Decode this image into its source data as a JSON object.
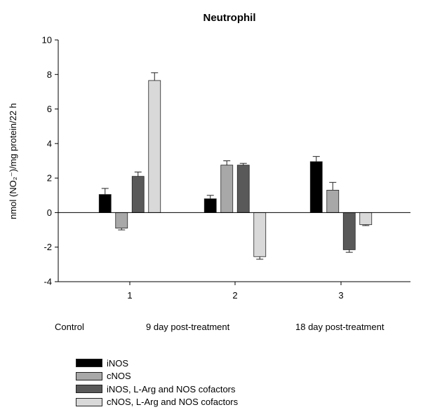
{
  "chart_data": {
    "type": "bar",
    "title": "Neutrophil",
    "ylabel": "nmol (NO₂⁻)/mg protein/22 h",
    "xlabel": "",
    "ylim": [
      -4,
      10
    ],
    "yticks": [
      -4,
      -2,
      0,
      2,
      4,
      6,
      8,
      10
    ],
    "categories": [
      "1",
      "2",
      "3"
    ],
    "group_labels": [
      "Control",
      "9 day post-treatment",
      "18 day post-treatment"
    ],
    "series": [
      {
        "name": "iNOS",
        "color": "#000000",
        "values": [
          1.05,
          0.8,
          2.95
        ],
        "errors": [
          0.35,
          0.2,
          0.3
        ]
      },
      {
        "name": "cNOS",
        "color": "#a8a8a8",
        "values": [
          -0.9,
          2.75,
          1.3
        ],
        "errors": [
          0.1,
          0.25,
          0.45
        ]
      },
      {
        "name": "iNOS, L-Arg and NOS cofactors",
        "color": "#595959",
        "values": [
          2.1,
          2.75,
          -2.15
        ],
        "errors": [
          0.25,
          0.1,
          0.15
        ]
      },
      {
        "name": "cNOS, L-Arg and NOS cofactors",
        "color": "#d9d9d9",
        "values": [
          7.65,
          -2.55,
          -0.7
        ],
        "errors": [
          0.45,
          0.15,
          0.05
        ]
      }
    ],
    "grid": false,
    "legend_position": "bottom-left"
  }
}
